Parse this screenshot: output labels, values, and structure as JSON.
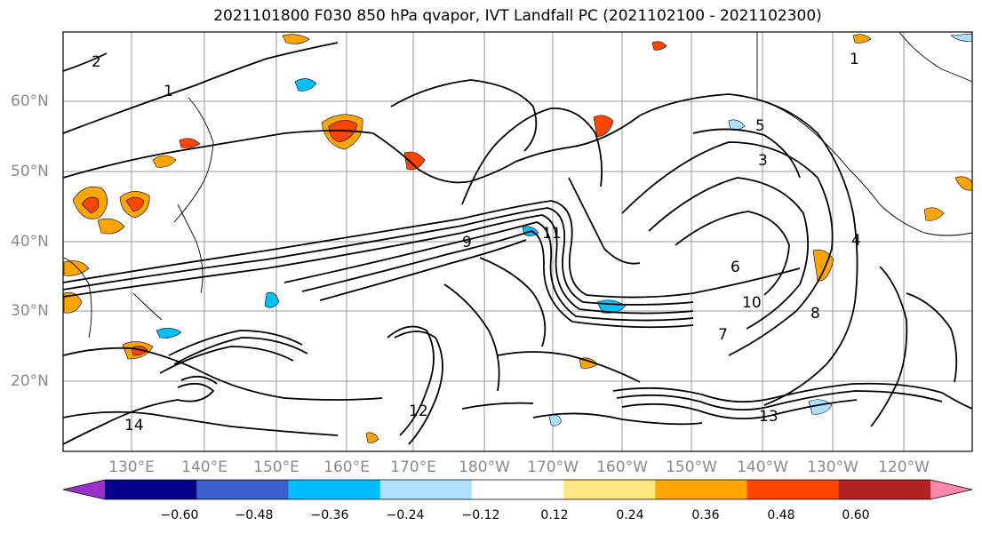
{
  "title": "2021101800 F030 850 hPa qvapor, IVT Landfall PC (2021102100 - 2021102300)",
  "latitude_labels": [
    "60°N",
    "50°N",
    "40°N",
    "30°N",
    "20°N"
  ],
  "longitude_labels": [
    "130°E",
    "140°E",
    "150°E",
    "160°E",
    "170°E",
    "180°W",
    "170°W",
    "160°W",
    "150°W",
    "140°W",
    "130°W",
    "120°W"
  ],
  "contour_labels": [
    "2",
    "1",
    "5",
    "3",
    "8",
    "6",
    "10",
    "12",
    "14",
    "13",
    "9",
    "4",
    "11",
    "7",
    "1"
  ],
  "colorbar": {
    "ticks": [
      "−0.60",
      "−0.48",
      "−0.36",
      "−0.24",
      "−0.12",
      "0.12",
      "0.24",
      "0.36",
      "0.48",
      "0.60"
    ],
    "colors": [
      "#9932cc",
      "#00008b",
      "#3a5fcd",
      "#00bfff",
      "#b0e0ff",
      "#ffffff",
      "#ffe680",
      "#ffa500",
      "#ff4500",
      "#b22222",
      "#ff88aa"
    ]
  }
}
